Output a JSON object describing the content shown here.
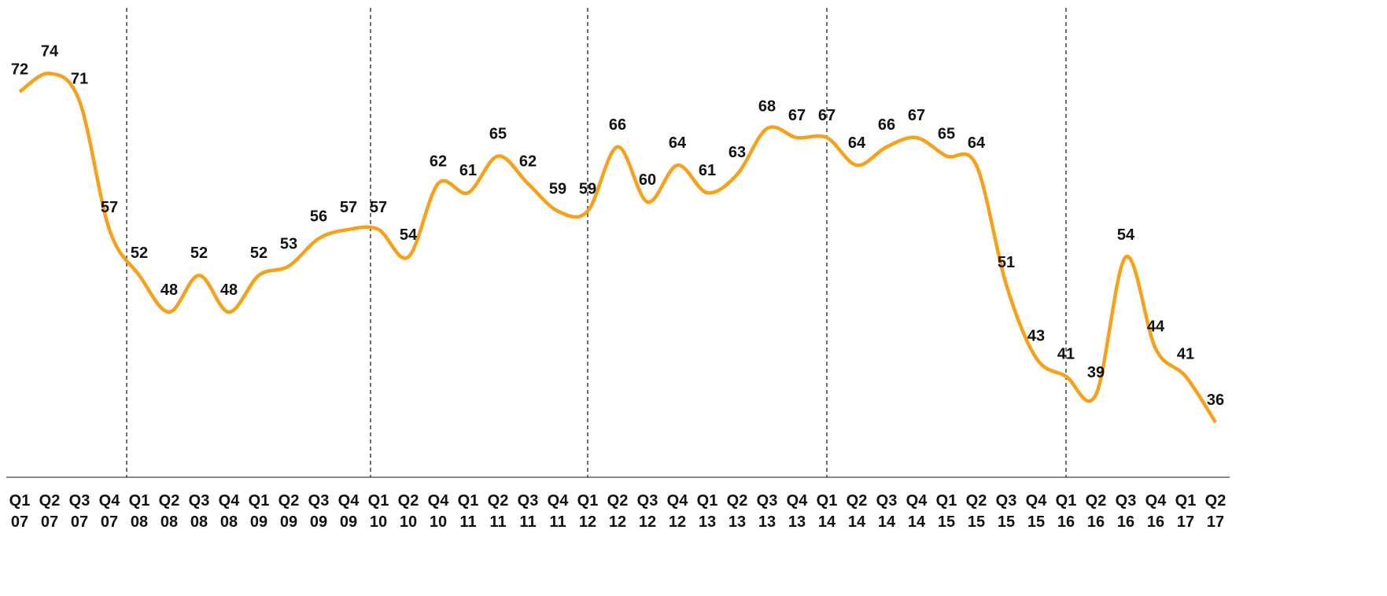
{
  "chart_data": {
    "type": "line",
    "categories": [
      [
        "Q1",
        "07"
      ],
      [
        "Q2",
        "07"
      ],
      [
        "Q3",
        "07"
      ],
      [
        "Q4",
        "07"
      ],
      [
        "Q1",
        "08"
      ],
      [
        "Q2",
        "08"
      ],
      [
        "Q3",
        "08"
      ],
      [
        "Q4",
        "08"
      ],
      [
        "Q1",
        "09"
      ],
      [
        "Q2",
        "09"
      ],
      [
        "Q3",
        "09"
      ],
      [
        "Q4",
        "09"
      ],
      [
        "Q1",
        "10"
      ],
      [
        "Q2",
        "10"
      ],
      [
        "Q4",
        "10"
      ],
      [
        "Q1",
        "11"
      ],
      [
        "Q2",
        "11"
      ],
      [
        "Q3",
        "11"
      ],
      [
        "Q4",
        "11"
      ],
      [
        "Q1",
        "12"
      ],
      [
        "Q2",
        "12"
      ],
      [
        "Q3",
        "12"
      ],
      [
        "Q4",
        "12"
      ],
      [
        "Q1",
        "13"
      ],
      [
        "Q2",
        "13"
      ],
      [
        "Q3",
        "13"
      ],
      [
        "Q4",
        "13"
      ],
      [
        "Q1",
        "14"
      ],
      [
        "Q2",
        "14"
      ],
      [
        "Q3",
        "14"
      ],
      [
        "Q4",
        "14"
      ],
      [
        "Q1",
        "15"
      ],
      [
        "Q2",
        "15"
      ],
      [
        "Q3",
        "15"
      ],
      [
        "Q4",
        "15"
      ],
      [
        "Q1",
        "16"
      ],
      [
        "Q2",
        "16"
      ],
      [
        "Q3",
        "16"
      ],
      [
        "Q4",
        "16"
      ],
      [
        "Q1",
        "17"
      ],
      [
        "Q2",
        "17"
      ]
    ],
    "values": [
      72,
      74,
      71,
      57,
      52,
      48,
      52,
      48,
      52,
      53,
      56,
      57,
      57,
      54,
      62,
      61,
      65,
      62,
      59,
      59,
      66,
      60,
      64,
      61,
      63,
      68,
      67,
      67,
      64,
      66,
      67,
      65,
      64,
      51,
      43,
      41,
      39,
      54,
      44,
      41,
      36
    ],
    "color": "#f7a11a",
    "ylim": [
      30,
      82
    ]
  }
}
